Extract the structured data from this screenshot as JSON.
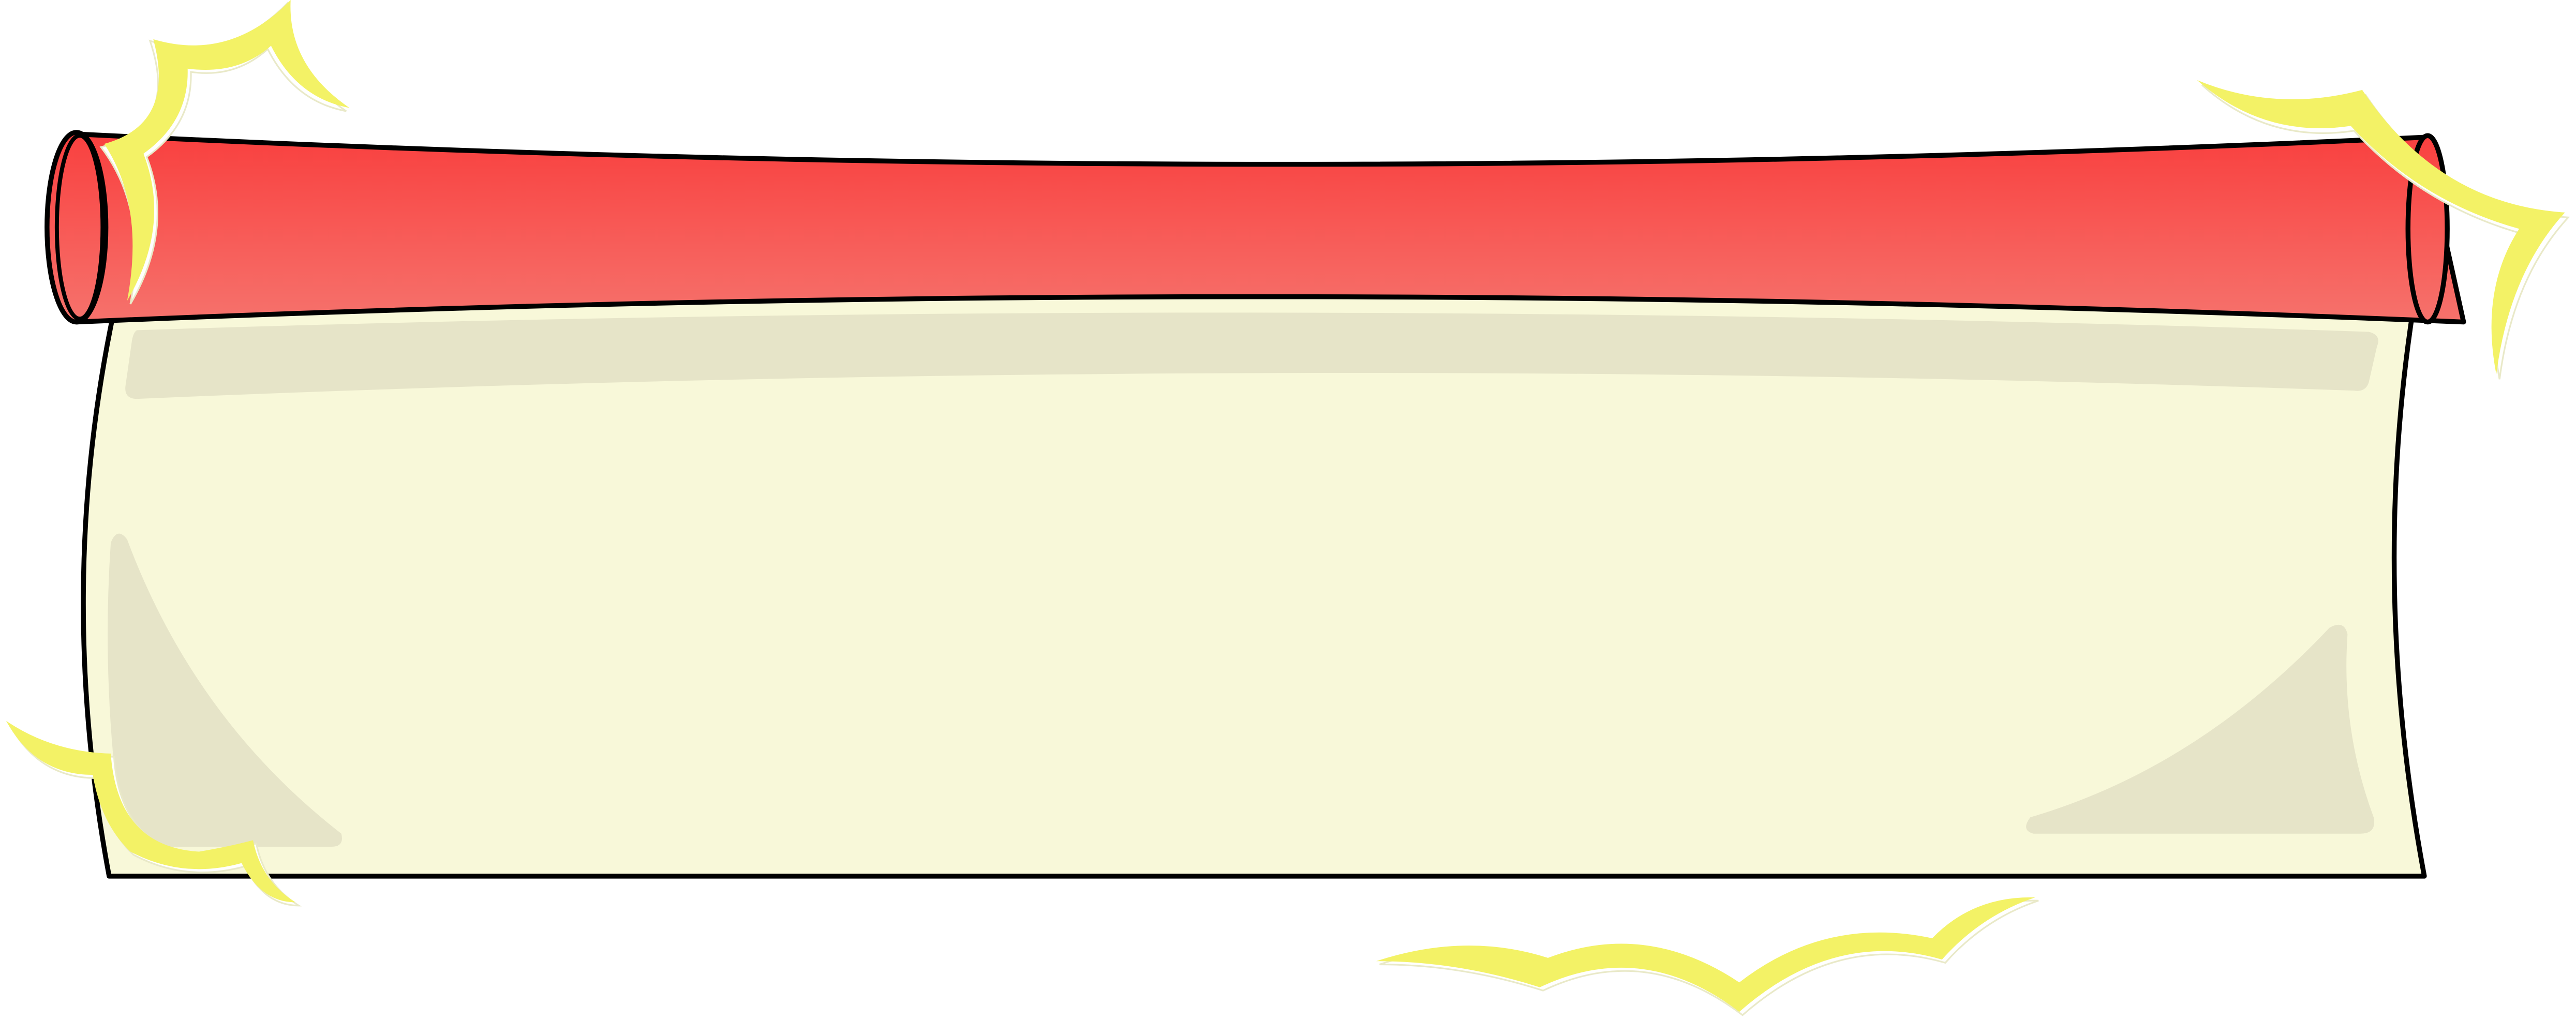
{
  "illustration": {
    "kind": "blank-scroll-banner",
    "icon": "scroll-banner-icon",
    "colors": {
      "background": "#ffffff",
      "paper": "#f8f8d9",
      "paper_shade": "#e6e4c8",
      "roller_top": "#f9403f",
      "roller_bottom": "#f6726c",
      "outline": "#000000",
      "spark": "#f3f266",
      "spark_highlight": "#ffffff"
    },
    "decorations": [
      "spark-swirl-icon-top-left",
      "spark-swirl-icon-top-right",
      "spark-swirl-icon-bottom-left",
      "spark-swirl-icon-bottom-center"
    ]
  }
}
